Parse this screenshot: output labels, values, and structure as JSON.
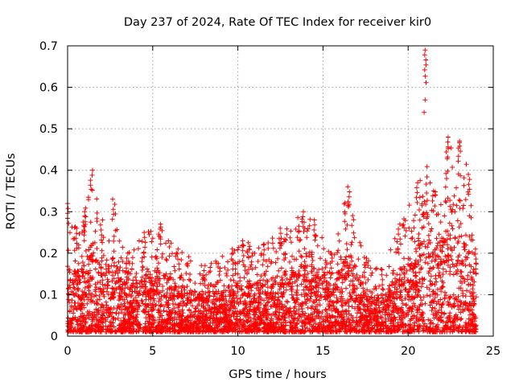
{
  "chart_data": {
    "type": "scatter",
    "title": "Day 237 of 2024, Rate Of TEC Index for receiver kir0",
    "xlabel": "GPS time / hours",
    "ylabel": "ROTI / TECUs",
    "xlim": [
      0,
      25
    ],
    "ylim": [
      0,
      0.7
    ],
    "xticks": [
      0,
      5,
      10,
      15,
      20,
      25
    ],
    "yticks": [
      0,
      0.1,
      0.2,
      0.3,
      0.4,
      0.5,
      0.6,
      0.7
    ],
    "xtick_labels": [
      "0",
      "5",
      "10",
      "15",
      "20",
      "25"
    ],
    "ytick_labels": [
      "0",
      "0.1",
      "0.2",
      "0.3",
      "0.4",
      "0.5",
      "0.6",
      "0.7"
    ],
    "grid": true,
    "marker": "+",
    "color": "#ff0000",
    "series": [
      {
        "name": "kir0",
        "note": "Dense cloud of ROTI samples from 0 to 24 h; envelope sampled below (hour, typical upper ROTI).",
        "envelope": [
          {
            "x": 0.0,
            "y": 0.32
          },
          {
            "x": 0.5,
            "y": 0.26
          },
          {
            "x": 1.0,
            "y": 0.3
          },
          {
            "x": 1.4,
            "y": 0.4
          },
          {
            "x": 2.0,
            "y": 0.28
          },
          {
            "x": 2.7,
            "y": 0.33
          },
          {
            "x": 3.5,
            "y": 0.2
          },
          {
            "x": 4.5,
            "y": 0.25
          },
          {
            "x": 5.4,
            "y": 0.27
          },
          {
            "x": 6.5,
            "y": 0.21
          },
          {
            "x": 8.0,
            "y": 0.17
          },
          {
            "x": 9.7,
            "y": 0.21
          },
          {
            "x": 10.3,
            "y": 0.23
          },
          {
            "x": 11.5,
            "y": 0.22
          },
          {
            "x": 12.5,
            "y": 0.26
          },
          {
            "x": 13.8,
            "y": 0.3
          },
          {
            "x": 14.5,
            "y": 0.28
          },
          {
            "x": 15.5,
            "y": 0.2
          },
          {
            "x": 16.5,
            "y": 0.36
          },
          {
            "x": 17.5,
            "y": 0.19
          },
          {
            "x": 18.5,
            "y": 0.16
          },
          {
            "x": 19.5,
            "y": 0.27
          },
          {
            "x": 20.5,
            "y": 0.37
          },
          {
            "x": 21.0,
            "y": 0.69
          },
          {
            "x": 21.5,
            "y": 0.35
          },
          {
            "x": 22.3,
            "y": 0.48
          },
          {
            "x": 23.0,
            "y": 0.47
          },
          {
            "x": 23.6,
            "y": 0.39
          },
          {
            "x": 24.0,
            "y": 0.21
          }
        ]
      }
    ]
  }
}
